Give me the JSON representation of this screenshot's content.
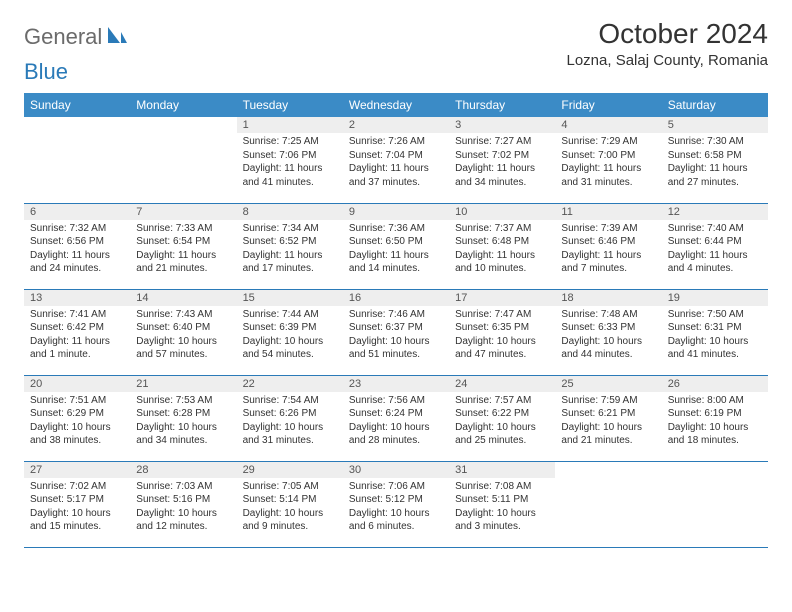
{
  "logo": {
    "text1": "General",
    "text2": "Blue"
  },
  "title": "October 2024",
  "location": "Lozna, Salaj County, Romania",
  "colors": {
    "header_bg": "#3b8bc6",
    "border": "#2a7ab8",
    "daynum_bg": "#eeeeee",
    "text": "#333333"
  },
  "day_headers": [
    "Sunday",
    "Monday",
    "Tuesday",
    "Wednesday",
    "Thursday",
    "Friday",
    "Saturday"
  ],
  "weeks": [
    [
      null,
      null,
      {
        "n": "1",
        "sr": "7:25 AM",
        "ss": "7:06 PM",
        "dl": "11 hours and 41 minutes."
      },
      {
        "n": "2",
        "sr": "7:26 AM",
        "ss": "7:04 PM",
        "dl": "11 hours and 37 minutes."
      },
      {
        "n": "3",
        "sr": "7:27 AM",
        "ss": "7:02 PM",
        "dl": "11 hours and 34 minutes."
      },
      {
        "n": "4",
        "sr": "7:29 AM",
        "ss": "7:00 PM",
        "dl": "11 hours and 31 minutes."
      },
      {
        "n": "5",
        "sr": "7:30 AM",
        "ss": "6:58 PM",
        "dl": "11 hours and 27 minutes."
      }
    ],
    [
      {
        "n": "6",
        "sr": "7:32 AM",
        "ss": "6:56 PM",
        "dl": "11 hours and 24 minutes."
      },
      {
        "n": "7",
        "sr": "7:33 AM",
        "ss": "6:54 PM",
        "dl": "11 hours and 21 minutes."
      },
      {
        "n": "8",
        "sr": "7:34 AM",
        "ss": "6:52 PM",
        "dl": "11 hours and 17 minutes."
      },
      {
        "n": "9",
        "sr": "7:36 AM",
        "ss": "6:50 PM",
        "dl": "11 hours and 14 minutes."
      },
      {
        "n": "10",
        "sr": "7:37 AM",
        "ss": "6:48 PM",
        "dl": "11 hours and 10 minutes."
      },
      {
        "n": "11",
        "sr": "7:39 AM",
        "ss": "6:46 PM",
        "dl": "11 hours and 7 minutes."
      },
      {
        "n": "12",
        "sr": "7:40 AM",
        "ss": "6:44 PM",
        "dl": "11 hours and 4 minutes."
      }
    ],
    [
      {
        "n": "13",
        "sr": "7:41 AM",
        "ss": "6:42 PM",
        "dl": "11 hours and 1 minute."
      },
      {
        "n": "14",
        "sr": "7:43 AM",
        "ss": "6:40 PM",
        "dl": "10 hours and 57 minutes."
      },
      {
        "n": "15",
        "sr": "7:44 AM",
        "ss": "6:39 PM",
        "dl": "10 hours and 54 minutes."
      },
      {
        "n": "16",
        "sr": "7:46 AM",
        "ss": "6:37 PM",
        "dl": "10 hours and 51 minutes."
      },
      {
        "n": "17",
        "sr": "7:47 AM",
        "ss": "6:35 PM",
        "dl": "10 hours and 47 minutes."
      },
      {
        "n": "18",
        "sr": "7:48 AM",
        "ss": "6:33 PM",
        "dl": "10 hours and 44 minutes."
      },
      {
        "n": "19",
        "sr": "7:50 AM",
        "ss": "6:31 PM",
        "dl": "10 hours and 41 minutes."
      }
    ],
    [
      {
        "n": "20",
        "sr": "7:51 AM",
        "ss": "6:29 PM",
        "dl": "10 hours and 38 minutes."
      },
      {
        "n": "21",
        "sr": "7:53 AM",
        "ss": "6:28 PM",
        "dl": "10 hours and 34 minutes."
      },
      {
        "n": "22",
        "sr": "7:54 AM",
        "ss": "6:26 PM",
        "dl": "10 hours and 31 minutes."
      },
      {
        "n": "23",
        "sr": "7:56 AM",
        "ss": "6:24 PM",
        "dl": "10 hours and 28 minutes."
      },
      {
        "n": "24",
        "sr": "7:57 AM",
        "ss": "6:22 PM",
        "dl": "10 hours and 25 minutes."
      },
      {
        "n": "25",
        "sr": "7:59 AM",
        "ss": "6:21 PM",
        "dl": "10 hours and 21 minutes."
      },
      {
        "n": "26",
        "sr": "8:00 AM",
        "ss": "6:19 PM",
        "dl": "10 hours and 18 minutes."
      }
    ],
    [
      {
        "n": "27",
        "sr": "7:02 AM",
        "ss": "5:17 PM",
        "dl": "10 hours and 15 minutes."
      },
      {
        "n": "28",
        "sr": "7:03 AM",
        "ss": "5:16 PM",
        "dl": "10 hours and 12 minutes."
      },
      {
        "n": "29",
        "sr": "7:05 AM",
        "ss": "5:14 PM",
        "dl": "10 hours and 9 minutes."
      },
      {
        "n": "30",
        "sr": "7:06 AM",
        "ss": "5:12 PM",
        "dl": "10 hours and 6 minutes."
      },
      {
        "n": "31",
        "sr": "7:08 AM",
        "ss": "5:11 PM",
        "dl": "10 hours and 3 minutes."
      },
      null,
      null
    ]
  ],
  "labels": {
    "sunrise": "Sunrise: ",
    "sunset": "Sunset: ",
    "daylight": "Daylight: "
  }
}
